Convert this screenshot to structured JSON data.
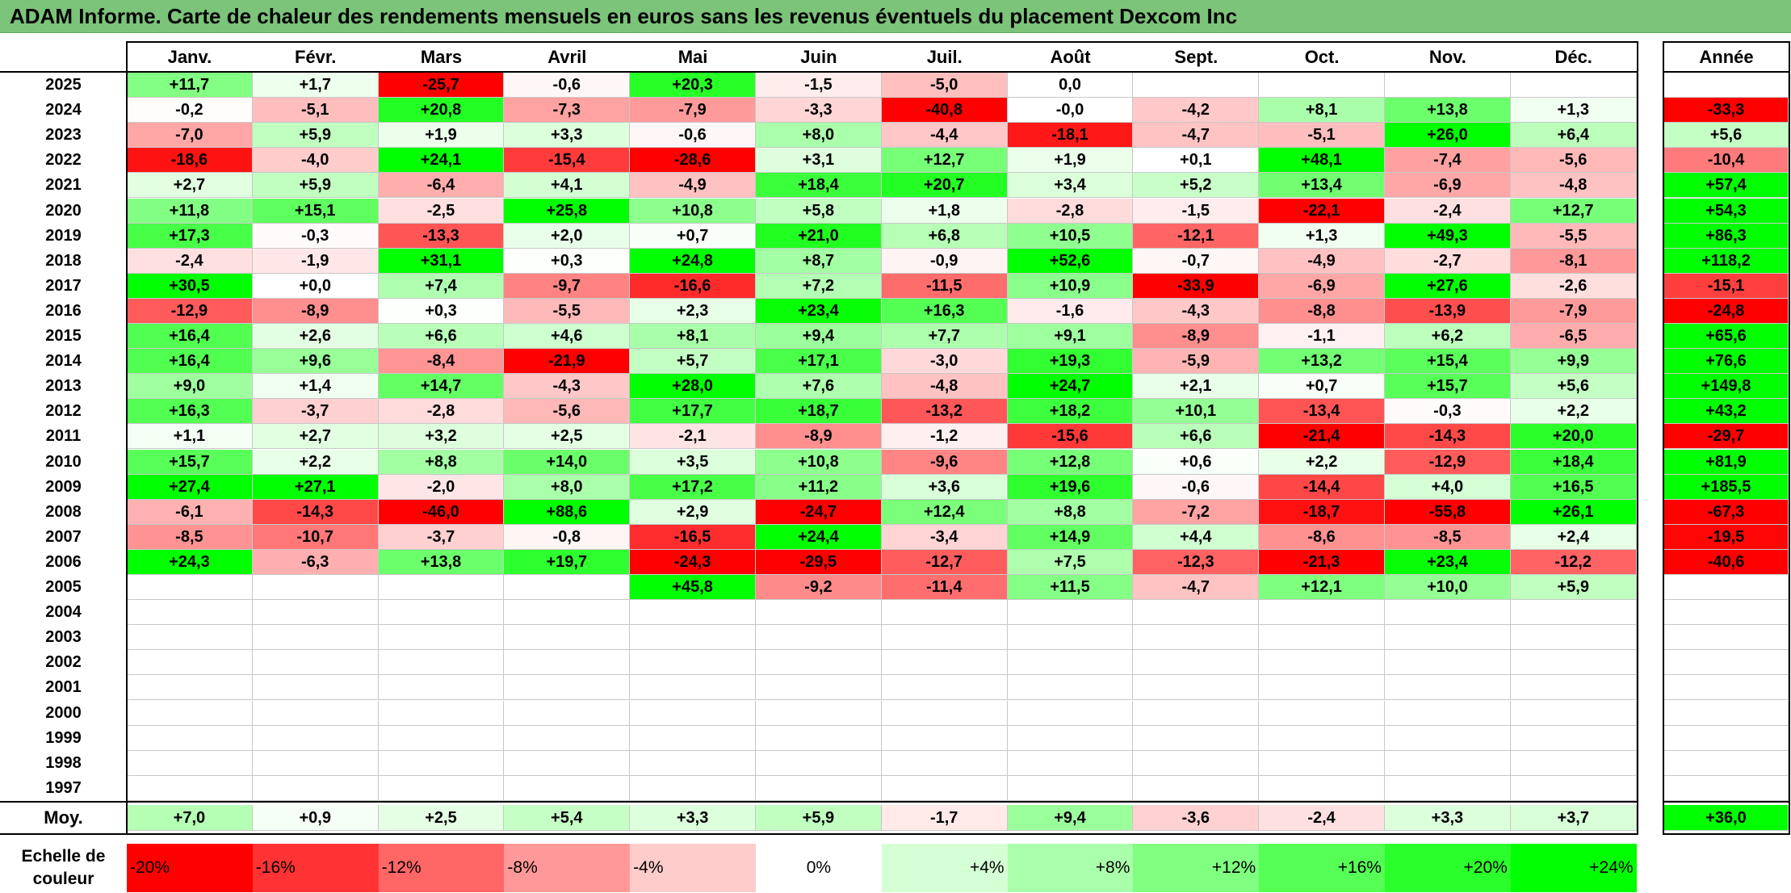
{
  "title": "ADAM Informe. Carte de chaleur des rendements mensuels en euros sans les revenus éventuels du placement Dexcom Inc",
  "chart_data": {
    "type": "heatmap",
    "title": "ADAM Informe. Carte de chaleur des rendements mensuels en euros sans les revenus éventuels du placement Dexcom Inc",
    "columns": [
      "Janv.",
      "Févr.",
      "Mars",
      "Avril",
      "Mai",
      "Juin",
      "Juil.",
      "Août",
      "Sept.",
      "Oct.",
      "Nov.",
      "Déc."
    ],
    "annual_header": "Année",
    "rows": [
      {
        "year": "2025",
        "values": [
          "+11,7",
          "+1,7",
          "-25,7",
          "-0,6",
          "+20,3",
          "-1,5",
          "-5,0",
          "0,0",
          "",
          "",
          "",
          ""
        ],
        "annual": ""
      },
      {
        "year": "2024",
        "values": [
          "-0,2",
          "-5,1",
          "+20,8",
          "-7,3",
          "-7,9",
          "-3,3",
          "-40,8",
          "-0,0",
          "-4,2",
          "+8,1",
          "+13,8",
          "+1,3"
        ],
        "annual": "-33,3"
      },
      {
        "year": "2023",
        "values": [
          "-7,0",
          "+5,9",
          "+1,9",
          "+3,3",
          "-0,6",
          "+8,0",
          "-4,4",
          "-18,1",
          "-4,7",
          "-5,1",
          "+26,0",
          "+6,4"
        ],
        "annual": "+5,6"
      },
      {
        "year": "2022",
        "values": [
          "-18,6",
          "-4,0",
          "+24,1",
          "-15,4",
          "-28,6",
          "+3,1",
          "+12,7",
          "+1,9",
          "+0,1",
          "+48,1",
          "-7,4",
          "-5,6"
        ],
        "annual": "-10,4"
      },
      {
        "year": "2021",
        "values": [
          "+2,7",
          "+5,9",
          "-6,4",
          "+4,1",
          "-4,9",
          "+18,4",
          "+20,7",
          "+3,4",
          "+5,2",
          "+13,4",
          "-6,9",
          "-4,8"
        ],
        "annual": "+57,4"
      },
      {
        "year": "2020",
        "values": [
          "+11,8",
          "+15,1",
          "-2,5",
          "+25,8",
          "+10,8",
          "+5,8",
          "+1,8",
          "-2,8",
          "-1,5",
          "-22,1",
          "-2,4",
          "+12,7"
        ],
        "annual": "+54,3"
      },
      {
        "year": "2019",
        "values": [
          "+17,3",
          "-0,3",
          "-13,3",
          "+2,0",
          "+0,7",
          "+21,0",
          "+6,8",
          "+10,5",
          "-12,1",
          "+1,3",
          "+49,3",
          "-5,5"
        ],
        "annual": "+86,3"
      },
      {
        "year": "2018",
        "values": [
          "-2,4",
          "-1,9",
          "+31,1",
          "+0,3",
          "+24,8",
          "+8,7",
          "-0,9",
          "+52,6",
          "-0,7",
          "-4,9",
          "-2,7",
          "-8,1"
        ],
        "annual": "+118,2"
      },
      {
        "year": "2017",
        "values": [
          "+30,5",
          "+0,0",
          "+7,4",
          "-9,7",
          "-16,6",
          "+7,2",
          "-11,5",
          "+10,9",
          "-33,9",
          "-6,9",
          "+27,6",
          "-2,6"
        ],
        "annual": "-15,1"
      },
      {
        "year": "2016",
        "values": [
          "-12,9",
          "-8,9",
          "+0,3",
          "-5,5",
          "+2,3",
          "+23,4",
          "+16,3",
          "-1,6",
          "-4,3",
          "-8,8",
          "-13,9",
          "-7,9"
        ],
        "annual": "-24,8"
      },
      {
        "year": "2015",
        "values": [
          "+16,4",
          "+2,6",
          "+6,6",
          "+4,6",
          "+8,1",
          "+9,4",
          "+7,7",
          "+9,1",
          "-8,9",
          "-1,1",
          "+6,2",
          "-6,5"
        ],
        "annual": "+65,6"
      },
      {
        "year": "2014",
        "values": [
          "+16,4",
          "+9,6",
          "-8,4",
          "-21,9",
          "+5,7",
          "+17,1",
          "-3,0",
          "+19,3",
          "-5,9",
          "+13,2",
          "+15,4",
          "+9,9"
        ],
        "annual": "+76,6"
      },
      {
        "year": "2013",
        "values": [
          "+9,0",
          "+1,4",
          "+14,7",
          "-4,3",
          "+28,0",
          "+7,6",
          "-4,8",
          "+24,7",
          "+2,1",
          "+0,7",
          "+15,7",
          "+5,6"
        ],
        "annual": "+149,8"
      },
      {
        "year": "2012",
        "values": [
          "+16,3",
          "-3,7",
          "-2,8",
          "-5,6",
          "+17,7",
          "+18,7",
          "-13,2",
          "+18,2",
          "+10,1",
          "-13,4",
          "-0,3",
          "+2,2"
        ],
        "annual": "+43,2"
      },
      {
        "year": "2011",
        "values": [
          "+1,1",
          "+2,7",
          "+3,2",
          "+2,5",
          "-2,1",
          "-8,9",
          "-1,2",
          "-15,6",
          "+6,6",
          "-21,4",
          "-14,3",
          "+20,0"
        ],
        "annual": "-29,7"
      },
      {
        "year": "2010",
        "values": [
          "+15,7",
          "+2,2",
          "+8,8",
          "+14,0",
          "+3,5",
          "+10,8",
          "-9,6",
          "+12,8",
          "+0,6",
          "+2,2",
          "-12,9",
          "+18,4"
        ],
        "annual": "+81,9"
      },
      {
        "year": "2009",
        "values": [
          "+27,4",
          "+27,1",
          "-2,0",
          "+8,0",
          "+17,2",
          "+11,2",
          "+3,6",
          "+19,6",
          "-0,6",
          "-14,4",
          "+4,0",
          "+16,5"
        ],
        "annual": "+185,5"
      },
      {
        "year": "2008",
        "values": [
          "-6,1",
          "-14,3",
          "-46,0",
          "+88,6",
          "+2,9",
          "-24,7",
          "+12,4",
          "+8,8",
          "-7,2",
          "-18,7",
          "-55,8",
          "+26,1"
        ],
        "annual": "-67,3"
      },
      {
        "year": "2007",
        "values": [
          "-8,5",
          "-10,7",
          "-3,7",
          "-0,8",
          "-16,5",
          "+24,4",
          "-3,4",
          "+14,9",
          "+4,4",
          "-8,6",
          "-8,5",
          "+2,4"
        ],
        "annual": "-19,5"
      },
      {
        "year": "2006",
        "values": [
          "+24,3",
          "-6,3",
          "+13,8",
          "+19,7",
          "-24,3",
          "-29,5",
          "-12,7",
          "+7,5",
          "-12,3",
          "-21,3",
          "+23,4",
          "-12,2"
        ],
        "annual": "-40,6"
      },
      {
        "year": "2005",
        "values": [
          "",
          "",
          "",
          "",
          "+45,8",
          "-9,2",
          "-11,4",
          "+11,5",
          "-4,7",
          "+12,1",
          "+10,0",
          "+5,9"
        ],
        "annual": ""
      },
      {
        "year": "2004",
        "values": [
          "",
          "",
          "",
          "",
          "",
          "",
          "",
          "",
          "",
          "",
          "",
          ""
        ],
        "annual": ""
      },
      {
        "year": "2003",
        "values": [
          "",
          "",
          "",
          "",
          "",
          "",
          "",
          "",
          "",
          "",
          "",
          ""
        ],
        "annual": ""
      },
      {
        "year": "2002",
        "values": [
          "",
          "",
          "",
          "",
          "",
          "",
          "",
          "",
          "",
          "",
          "",
          ""
        ],
        "annual": ""
      },
      {
        "year": "2001",
        "values": [
          "",
          "",
          "",
          "",
          "",
          "",
          "",
          "",
          "",
          "",
          "",
          ""
        ],
        "annual": ""
      },
      {
        "year": "2000",
        "values": [
          "",
          "",
          "",
          "",
          "",
          "",
          "",
          "",
          "",
          "",
          "",
          ""
        ],
        "annual": ""
      },
      {
        "year": "1999",
        "values": [
          "",
          "",
          "",
          "",
          "",
          "",
          "",
          "",
          "",
          "",
          "",
          ""
        ],
        "annual": ""
      },
      {
        "year": "1998",
        "values": [
          "",
          "",
          "",
          "",
          "",
          "",
          "",
          "",
          "",
          "",
          "",
          ""
        ],
        "annual": ""
      },
      {
        "year": "1997",
        "values": [
          "",
          "",
          "",
          "",
          "",
          "",
          "",
          "",
          "",
          "",
          "",
          ""
        ],
        "annual": ""
      }
    ],
    "average": {
      "label": "Moy.",
      "values": [
        "+7,0",
        "+0,9",
        "+2,5",
        "+5,4",
        "+3,3",
        "+5,9",
        "-1,7",
        "+9,4",
        "-3,6",
        "-2,4",
        "+3,3",
        "+3,7"
      ],
      "annual": "+36,0"
    },
    "legend": {
      "label": "Echelle de couleur",
      "steps": [
        {
          "text": "-20%",
          "value": -20,
          "color": "#ff0000"
        },
        {
          "text": "-16%",
          "value": -16,
          "color": "#ff3333"
        },
        {
          "text": "-12%",
          "value": -12,
          "color": "#ff6666"
        },
        {
          "text": "-8%",
          "value": -8,
          "color": "#ff9999"
        },
        {
          "text": "-4%",
          "value": -4,
          "color": "#ffcccc"
        },
        {
          "text": "0%",
          "value": 0,
          "color": "#ffffff"
        },
        {
          "text": "+4%",
          "value": 4,
          "color": "#d5ffd5"
        },
        {
          "text": "+8%",
          "value": 8,
          "color": "#aaffaa"
        },
        {
          "text": "+12%",
          "value": 12,
          "color": "#80ff80"
        },
        {
          "text": "+16%",
          "value": 16,
          "color": "#55ff55"
        },
        {
          "text": "+20%",
          "value": 20,
          "color": "#2bff2b"
        },
        {
          "text": "+24%",
          "value": 24,
          "color": "#00ff00"
        }
      ]
    }
  }
}
